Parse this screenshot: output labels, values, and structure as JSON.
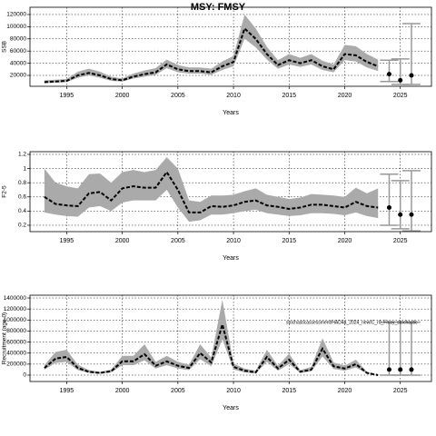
{
  "title": "MSY: FMSY",
  "chart_data": [
    {
      "type": "line",
      "xlabel": "Years",
      "ylabel": "SSB",
      "x": [
        1993,
        1994,
        1995,
        1996,
        1997,
        1998,
        1999,
        2000,
        2001,
        2002,
        2003,
        2004,
        2005,
        2006,
        2007,
        2008,
        2009,
        2010,
        2011,
        2012,
        2013,
        2014,
        2015,
        2016,
        2017,
        2018,
        2019,
        2020,
        2021,
        2022,
        2023
      ],
      "values": [
        9000,
        10000,
        11000,
        20000,
        24000,
        20000,
        14000,
        12000,
        18000,
        22000,
        25000,
        38000,
        30000,
        27000,
        27000,
        25000,
        35000,
        42000,
        97000,
        80000,
        55000,
        37000,
        45000,
        40000,
        45000,
        35000,
        30000,
        55000,
        53000,
        42000,
        35000
      ],
      "lower": [
        7000,
        8000,
        9000,
        16000,
        20000,
        16000,
        11000,
        10000,
        15000,
        18000,
        21000,
        32000,
        25000,
        23000,
        23000,
        21000,
        29000,
        35000,
        80000,
        66000,
        46000,
        31000,
        38000,
        34000,
        38000,
        29000,
        25000,
        45000,
        43000,
        33000,
        27000
      ],
      "upper": [
        12000,
        13000,
        14000,
        26000,
        31000,
        26000,
        18000,
        15000,
        23000,
        28000,
        32000,
        46000,
        37000,
        33000,
        33000,
        31000,
        43000,
        52000,
        120000,
        97000,
        67000,
        45000,
        55000,
        49000,
        55000,
        44000,
        38000,
        70000,
        68000,
        55000,
        46000
      ],
      "projection": {
        "x": [
          2024,
          2025,
          2026
        ],
        "values": [
          22000,
          12000,
          20000
        ],
        "lower": [
          10000,
          5000,
          5000
        ],
        "upper": [
          45000,
          47000,
          105000
        ]
      },
      "xlim": [
        1991.7,
        2027.8
      ],
      "xticks": [
        1995,
        2000,
        2005,
        2010,
        2015,
        2020,
        2025
      ],
      "ylim": [
        2100,
        131900
      ],
      "yticks": [
        20000,
        40000,
        60000,
        80000,
        100000,
        120000
      ],
      "grid": true
    },
    {
      "type": "line",
      "xlabel": "Years",
      "ylabel": "F2-5",
      "x": [
        1993,
        1994,
        1995,
        1996,
        1997,
        1998,
        1999,
        2000,
        2001,
        2002,
        2003,
        2004,
        2005,
        2006,
        2007,
        2008,
        2009,
        2010,
        2011,
        2012,
        2013,
        2014,
        2015,
        2016,
        2017,
        2018,
        2019,
        2020,
        2021,
        2022,
        2023
      ],
      "values": [
        0.6,
        0.5,
        0.48,
        0.47,
        0.65,
        0.67,
        0.55,
        0.72,
        0.75,
        0.73,
        0.73,
        0.95,
        0.7,
        0.38,
        0.38,
        0.47,
        0.46,
        0.48,
        0.53,
        0.55,
        0.48,
        0.46,
        0.43,
        0.45,
        0.49,
        0.49,
        0.47,
        0.45,
        0.53,
        0.47,
        0.45
      ],
      "lower": [
        0.38,
        0.35,
        0.33,
        0.32,
        0.45,
        0.47,
        0.4,
        0.52,
        0.55,
        0.55,
        0.55,
        0.7,
        0.45,
        0.25,
        0.27,
        0.35,
        0.35,
        0.37,
        0.4,
        0.42,
        0.37,
        0.35,
        0.33,
        0.34,
        0.37,
        0.37,
        0.36,
        0.34,
        0.38,
        0.33,
        0.3
      ],
      "upper": [
        1.0,
        0.8,
        0.75,
        0.72,
        0.92,
        0.93,
        0.8,
        0.95,
        0.98,
        0.95,
        0.98,
        1.16,
        1.0,
        0.55,
        0.53,
        0.62,
        0.62,
        0.63,
        0.68,
        0.72,
        0.63,
        0.6,
        0.57,
        0.59,
        0.64,
        0.63,
        0.62,
        0.6,
        0.73,
        0.65,
        0.72
      ],
      "projection": {
        "x": [
          2024,
          2025,
          2026
        ],
        "values": [
          0.45,
          0.35,
          0.35
        ],
        "lower": [
          0.2,
          0.15,
          0.12
        ],
        "upper": [
          0.92,
          0.83,
          0.97
        ]
      },
      "xlim": [
        1991.7,
        2027.8
      ],
      "xticks": [
        1995,
        2000,
        2005,
        2010,
        2015,
        2020,
        2025
      ],
      "ylim": [
        0.11,
        1.238
      ],
      "yticks": [
        0.2,
        0.4,
        0.6,
        0.8,
        1.0,
        1.2
      ],
      "grid": true
    },
    {
      "type": "line",
      "xlabel": "Years",
      "ylabel": "Recruitment (age 0)",
      "annotation": "stochasticassessment/HAD4a_2024_newIC_r0_Fmsy_stochastic",
      "x": [
        1993,
        1994,
        1995,
        1996,
        1997,
        1998,
        1999,
        2000,
        2001,
        2002,
        2003,
        2004,
        2005,
        2006,
        2007,
        2008,
        2009,
        2010,
        2011,
        2012,
        2013,
        2014,
        2015,
        2016,
        2017,
        2018,
        2019,
        2020,
        2021,
        2022,
        2023
      ],
      "values": [
        130000,
        300000,
        330000,
        130000,
        60000,
        40000,
        70000,
        250000,
        250000,
        380000,
        170000,
        250000,
        170000,
        130000,
        400000,
        230000,
        920000,
        150000,
        80000,
        50000,
        330000,
        120000,
        280000,
        60000,
        100000,
        480000,
        160000,
        120000,
        200000,
        40000,
        0
      ],
      "lower": [
        100000,
        220000,
        240000,
        90000,
        40000,
        25000,
        50000,
        180000,
        180000,
        270000,
        120000,
        180000,
        120000,
        90000,
        290000,
        160000,
        650000,
        100000,
        50000,
        30000,
        240000,
        80000,
        200000,
        40000,
        70000,
        340000,
        110000,
        80000,
        140000,
        25000,
        0
      ],
      "upper": [
        180000,
        420000,
        460000,
        190000,
        90000,
        60000,
        100000,
        350000,
        350000,
        560000,
        240000,
        350000,
        240000,
        190000,
        560000,
        320000,
        1370000,
        210000,
        120000,
        80000,
        460000,
        170000,
        390000,
        90000,
        150000,
        670000,
        230000,
        170000,
        280000,
        60000,
        0
      ],
      "projection": {
        "x": [
          2024,
          2025,
          2026
        ],
        "values": [
          100000,
          100000,
          100000
        ],
        "lower": [
          0,
          0,
          0
        ],
        "upper": [
          960000,
          960000,
          960000
        ]
      },
      "xlim": [
        1991.7,
        2027.8
      ],
      "xticks": [
        1995,
        2000,
        2005,
        2010,
        2015,
        2020,
        2025
      ],
      "ylim": [
        -115700,
        1450000
      ],
      "yticks": [
        0,
        200000,
        400000,
        600000,
        800000,
        1000000,
        1200000,
        1400000
      ],
      "grid": true
    }
  ]
}
